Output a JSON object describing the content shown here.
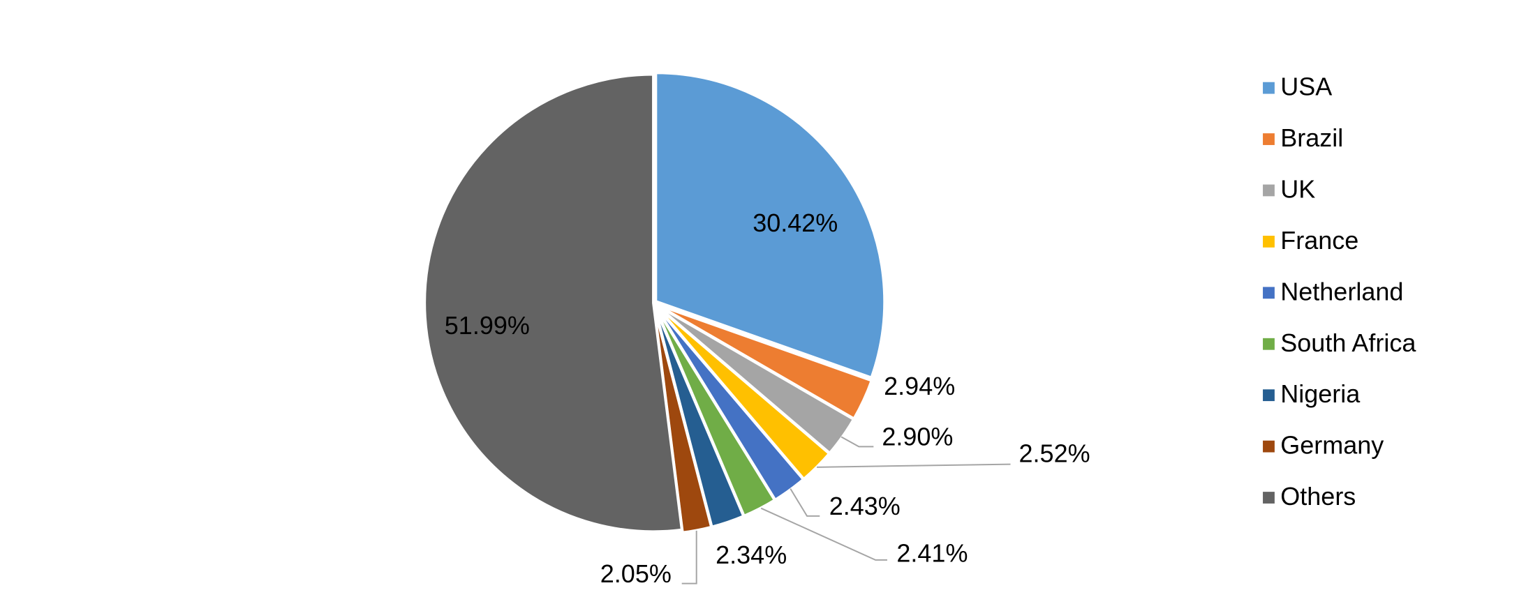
{
  "chart_data": {
    "type": "pie",
    "categories": [
      "USA",
      "Brazil",
      "UK",
      "France",
      "Netherland",
      "South Africa",
      "Nigeria",
      "Germany",
      "Others"
    ],
    "values": [
      30.42,
      2.94,
      2.9,
      2.52,
      2.43,
      2.41,
      2.34,
      2.05,
      51.99
    ],
    "value_labels": [
      "30.42%",
      "2.94%",
      "2.90%",
      "2.52%",
      "2.43%",
      "2.41%",
      "2.34%",
      "2.05%",
      "51.99%"
    ],
    "colors": [
      "#5b9bd5",
      "#ed7d31",
      "#a5a5a5",
      "#ffc000",
      "#4472c4",
      "#70ad47",
      "#255e91",
      "#9e480e",
      "#636363"
    ],
    "legend": "right"
  }
}
